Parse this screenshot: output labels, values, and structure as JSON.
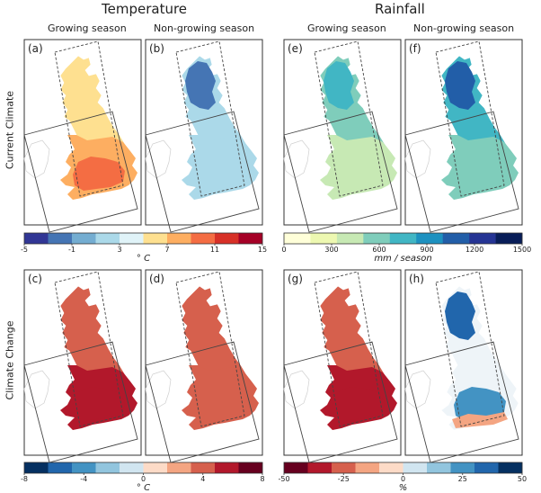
{
  "headers": {
    "temperature": "Temperature",
    "rainfall": "Rainfall"
  },
  "columns": {
    "a": "Growing season",
    "b": "Non-growing season",
    "e": "Growing season",
    "f": "Non-growing season"
  },
  "rows": {
    "top": "Current Climate",
    "bottom": "Climate Change"
  },
  "panels": {
    "a": "(a)",
    "b": "(b)",
    "c": "(c)",
    "d": "(d)",
    "e": "(e)",
    "f": "(f)",
    "g": "(g)",
    "h": "(h)"
  },
  "colorbars": {
    "temp_current": {
      "ticks": [
        "-5",
        "-1",
        "3",
        "7",
        "11",
        "15"
      ],
      "unit": "° C",
      "colors": [
        "#313695",
        "#4575b4",
        "#74add1",
        "#abd9e9",
        "#e0f3f8",
        "#fee090",
        "#fdae61",
        "#f46d43",
        "#d73027",
        "#a50026"
      ]
    },
    "rain_current": {
      "ticks": [
        "0",
        "300",
        "600",
        "900",
        "1200",
        "1500"
      ],
      "unit": "mm / season",
      "colors": [
        "#ffffd9",
        "#edf8b1",
        "#c7e9b4",
        "#7fcdbb",
        "#41b6c4",
        "#1d91c0",
        "#225ea8",
        "#253494",
        "#081d58"
      ]
    },
    "temp_change": {
      "ticks": [
        "-8",
        "-4",
        "0",
        "4",
        "8"
      ],
      "unit": "° C",
      "colors": [
        "#053061",
        "#2166ac",
        "#4393c3",
        "#92c5de",
        "#d1e5f0",
        "#fddbc7",
        "#f4a582",
        "#d6604d",
        "#b2182b",
        "#67001f"
      ]
    },
    "rain_change": {
      "ticks": [
        "-50",
        "-25",
        "0",
        "25",
        "50"
      ],
      "unit": "%",
      "colors": [
        "#67001f",
        "#b2182b",
        "#d6604d",
        "#f4a582",
        "#fddbc7",
        "#d1e5f0",
        "#92c5de",
        "#4393c3",
        "#2166ac",
        "#053061"
      ]
    }
  },
  "colors": {
    "a": [
      "#fee090",
      "#fdae61",
      "#f46d43"
    ],
    "b": [
      "#4575b4",
      "#74add1",
      "#abd9e9"
    ],
    "c": [
      "#d6604d",
      "#b2182b",
      "#b2182b"
    ],
    "d": [
      "#d6604d",
      "#d6604d",
      "#d6604d"
    ],
    "e": [
      "#41b6c4",
      "#7fcdbb",
      "#c7e9b4"
    ],
    "f": [
      "#225ea8",
      "#41b6c4",
      "#7fcdbb"
    ],
    "g": [
      "#d6604d",
      "#b2182b",
      "#b2182b"
    ],
    "h": [
      "#2166ac",
      "#4393c3",
      "#f4a582"
    ]
  }
}
